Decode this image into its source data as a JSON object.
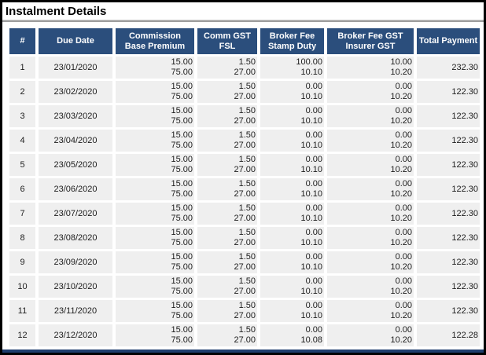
{
  "title": "Instalment Details",
  "colors": {
    "header_bg": "#2B4E7C",
    "row_bg": "#EFEFEF",
    "accent_line": "#1F3E6E",
    "title_rule": "#9E9E9E",
    "frame_border": "#000000",
    "header_text": "#FFFFFF",
    "body_text": "#1C1C1C"
  },
  "table": {
    "columns": [
      {
        "key": "num",
        "lines": [
          "#"
        ],
        "align": "center"
      },
      {
        "key": "due_date",
        "lines": [
          "Due Date"
        ],
        "align": "center"
      },
      {
        "key": "commission_base_premium",
        "lines": [
          "Commission",
          "Base Premium"
        ],
        "align": "right"
      },
      {
        "key": "comm_gst_fsl",
        "lines": [
          "Comm GST",
          "FSL"
        ],
        "align": "right"
      },
      {
        "key": "broker_fee_stamp_duty",
        "lines": [
          "Broker Fee",
          "Stamp Duty"
        ],
        "align": "right"
      },
      {
        "key": "broker_fee_gst_insurer_gst",
        "lines": [
          "Broker Fee GST",
          "Insurer GST"
        ],
        "align": "right"
      },
      {
        "key": "total_payment",
        "lines": [
          "Total Payment"
        ],
        "align": "right"
      }
    ],
    "rows": [
      {
        "num": "1",
        "due_date": "23/01/2020",
        "commission_base_premium": [
          "15.00",
          "75.00"
        ],
        "comm_gst_fsl": [
          "1.50",
          "27.00"
        ],
        "broker_fee_stamp_duty": [
          "100.00",
          "10.10"
        ],
        "broker_fee_gst_insurer_gst": [
          "10.00",
          "10.20"
        ],
        "total_payment": "232.30"
      },
      {
        "num": "2",
        "due_date": "23/02/2020",
        "commission_base_premium": [
          "15.00",
          "75.00"
        ],
        "comm_gst_fsl": [
          "1.50",
          "27.00"
        ],
        "broker_fee_stamp_duty": [
          "0.00",
          "10.10"
        ],
        "broker_fee_gst_insurer_gst": [
          "0.00",
          "10.20"
        ],
        "total_payment": "122.30"
      },
      {
        "num": "3",
        "due_date": "23/03/2020",
        "commission_base_premium": [
          "15.00",
          "75.00"
        ],
        "comm_gst_fsl": [
          "1.50",
          "27.00"
        ],
        "broker_fee_stamp_duty": [
          "0.00",
          "10.10"
        ],
        "broker_fee_gst_insurer_gst": [
          "0.00",
          "10.20"
        ],
        "total_payment": "122.30"
      },
      {
        "num": "4",
        "due_date": "23/04/2020",
        "commission_base_premium": [
          "15.00",
          "75.00"
        ],
        "comm_gst_fsl": [
          "1.50",
          "27.00"
        ],
        "broker_fee_stamp_duty": [
          "0.00",
          "10.10"
        ],
        "broker_fee_gst_insurer_gst": [
          "0.00",
          "10.20"
        ],
        "total_payment": "122.30"
      },
      {
        "num": "5",
        "due_date": "23/05/2020",
        "commission_base_premium": [
          "15.00",
          "75.00"
        ],
        "comm_gst_fsl": [
          "1.50",
          "27.00"
        ],
        "broker_fee_stamp_duty": [
          "0.00",
          "10.10"
        ],
        "broker_fee_gst_insurer_gst": [
          "0.00",
          "10.20"
        ],
        "total_payment": "122.30"
      },
      {
        "num": "6",
        "due_date": "23/06/2020",
        "commission_base_premium": [
          "15.00",
          "75.00"
        ],
        "comm_gst_fsl": [
          "1.50",
          "27.00"
        ],
        "broker_fee_stamp_duty": [
          "0.00",
          "10.10"
        ],
        "broker_fee_gst_insurer_gst": [
          "0.00",
          "10.20"
        ],
        "total_payment": "122.30"
      },
      {
        "num": "7",
        "due_date": "23/07/2020",
        "commission_base_premium": [
          "15.00",
          "75.00"
        ],
        "comm_gst_fsl": [
          "1.50",
          "27.00"
        ],
        "broker_fee_stamp_duty": [
          "0.00",
          "10.10"
        ],
        "broker_fee_gst_insurer_gst": [
          "0.00",
          "10.20"
        ],
        "total_payment": "122.30"
      },
      {
        "num": "8",
        "due_date": "23/08/2020",
        "commission_base_premium": [
          "15.00",
          "75.00"
        ],
        "comm_gst_fsl": [
          "1.50",
          "27.00"
        ],
        "broker_fee_stamp_duty": [
          "0.00",
          "10.10"
        ],
        "broker_fee_gst_insurer_gst": [
          "0.00",
          "10.20"
        ],
        "total_payment": "122.30"
      },
      {
        "num": "9",
        "due_date": "23/09/2020",
        "commission_base_premium": [
          "15.00",
          "75.00"
        ],
        "comm_gst_fsl": [
          "1.50",
          "27.00"
        ],
        "broker_fee_stamp_duty": [
          "0.00",
          "10.10"
        ],
        "broker_fee_gst_insurer_gst": [
          "0.00",
          "10.20"
        ],
        "total_payment": "122.30"
      },
      {
        "num": "10",
        "due_date": "23/10/2020",
        "commission_base_premium": [
          "15.00",
          "75.00"
        ],
        "comm_gst_fsl": [
          "1.50",
          "27.00"
        ],
        "broker_fee_stamp_duty": [
          "0.00",
          "10.10"
        ],
        "broker_fee_gst_insurer_gst": [
          "0.00",
          "10.20"
        ],
        "total_payment": "122.30"
      },
      {
        "num": "11",
        "due_date": "23/11/2020",
        "commission_base_premium": [
          "15.00",
          "75.00"
        ],
        "comm_gst_fsl": [
          "1.50",
          "27.00"
        ],
        "broker_fee_stamp_duty": [
          "0.00",
          "10.10"
        ],
        "broker_fee_gst_insurer_gst": [
          "0.00",
          "10.20"
        ],
        "total_payment": "122.30"
      },
      {
        "num": "12",
        "due_date": "23/12/2020",
        "commission_base_premium": [
          "15.00",
          "75.00"
        ],
        "comm_gst_fsl": [
          "1.50",
          "27.00"
        ],
        "broker_fee_stamp_duty": [
          "0.00",
          "10.08"
        ],
        "broker_fee_gst_insurer_gst": [
          "0.00",
          "10.20"
        ],
        "total_payment": "122.28"
      }
    ]
  }
}
